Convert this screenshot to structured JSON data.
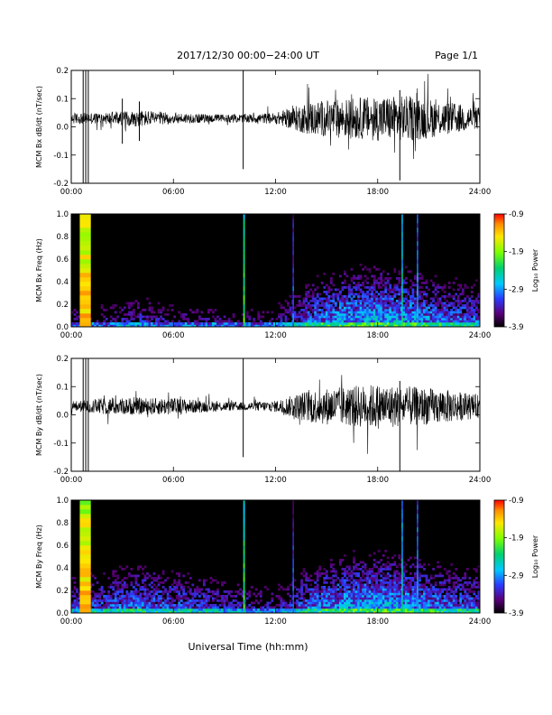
{
  "header": {
    "title": "2017/12/30   00:00−24:00 UT",
    "page": "Page 1/1"
  },
  "xaxis": {
    "label": "Universal Time (hh:mm)",
    "ticks": [
      "00:00",
      "06:00",
      "12:00",
      "18:00",
      "24:00"
    ],
    "range_hours": [
      0,
      24
    ]
  },
  "colorbar": {
    "label": "Log₁₀ Power",
    "tick_labels": [
      "-0.9",
      "-1.9",
      "-2.9",
      "-3.9"
    ],
    "range": [
      -3.9,
      -0.9
    ]
  },
  "chart_data": [
    {
      "type": "line",
      "ylabel": "MCM Bx dB/dt (nT/sec)",
      "ylim": [
        -0.2,
        0.2
      ],
      "yticks": [
        "0.2",
        "0.1",
        "0.0",
        "-0.1",
        "-0.2"
      ],
      "xlim": [
        0,
        24
      ],
      "baseline": 0.03,
      "noise_envelope": {
        "hours": [
          0,
          0.5,
          1.2,
          2,
          4,
          6,
          8,
          10,
          12,
          13,
          14,
          16,
          18,
          20,
          22,
          24
        ],
        "amplitude": [
          0.02,
          0.02,
          0.02,
          0.02,
          0.03,
          0.02,
          0.015,
          0.015,
          0.02,
          0.04,
          0.06,
          0.07,
          0.08,
          0.08,
          0.06,
          0.04
        ]
      },
      "spikes": [
        {
          "hour": 0.7,
          "min": -0.2,
          "max": 0.2
        },
        {
          "hour": 0.85,
          "min": -0.2,
          "max": 0.2
        },
        {
          "hour": 1.0,
          "min": -0.2,
          "max": 0.2
        },
        {
          "hour": 3.0,
          "min": -0.06,
          "max": 0.1
        },
        {
          "hour": 4.0,
          "min": -0.05,
          "max": 0.09
        },
        {
          "hour": 10.1,
          "min": -0.15,
          "max": 0.2
        },
        {
          "hour": 19.3,
          "min": -0.19,
          "max": 0.13
        },
        {
          "hour": 20.3,
          "min": -0.04,
          "max": 0.12
        }
      ]
    },
    {
      "type": "heatmap",
      "ylabel": "MCM Bx Freq (Hz)",
      "ylim": [
        0,
        1
      ],
      "yticks": [
        "1.0",
        "0.8",
        "0.6",
        "0.4",
        "0.2",
        "0.0"
      ],
      "xlim": [
        0,
        24
      ],
      "zlim": [
        -3.9,
        -0.9
      ],
      "background": -3.9,
      "broadband_events": [
        {
          "start": 0.5,
          "end": 1.15,
          "power": -1.3
        },
        {
          "start": 10.1,
          "end": 10.2,
          "power": -2.1
        },
        {
          "start": 13.0,
          "end": 13.08,
          "power": -3.0
        },
        {
          "start": 19.4,
          "end": 19.48,
          "power": -2.4
        },
        {
          "start": 20.3,
          "end": 20.36,
          "power": -2.7
        }
      ],
      "activity": {
        "hours": [
          0,
          2,
          4,
          6,
          8,
          10,
          12,
          13,
          14,
          16,
          18,
          20,
          22,
          24
        ],
        "power": [
          -3.6,
          -3.6,
          -3.4,
          -3.6,
          -3.6,
          -3.7,
          -3.6,
          -3.3,
          -3.0,
          -2.8,
          -2.7,
          -2.8,
          -3.0,
          -3.1
        ]
      }
    },
    {
      "type": "line",
      "ylabel": "MCM By dB/dt (nT/sec)",
      "ylim": [
        -0.2,
        0.2
      ],
      "yticks": [
        "0.2",
        "0.1",
        "0.0",
        "-0.1",
        "-0.2"
      ],
      "xlim": [
        0,
        24
      ],
      "baseline": 0.03,
      "noise_envelope": {
        "hours": [
          0,
          0.5,
          1.2,
          2,
          4,
          6,
          8,
          10,
          12,
          13,
          14,
          16,
          18,
          20,
          22,
          24
        ],
        "amplitude": [
          0.02,
          0.02,
          0.025,
          0.03,
          0.03,
          0.03,
          0.02,
          0.015,
          0.02,
          0.04,
          0.06,
          0.07,
          0.08,
          0.07,
          0.06,
          0.04
        ]
      },
      "spikes": [
        {
          "hour": 0.7,
          "min": -0.2,
          "max": 0.2
        },
        {
          "hour": 0.85,
          "min": -0.2,
          "max": 0.2
        },
        {
          "hour": 1.0,
          "min": -0.2,
          "max": 0.2
        },
        {
          "hour": 10.1,
          "min": -0.15,
          "max": 0.2
        },
        {
          "hour": 19.3,
          "min": -0.2,
          "max": 0.12
        }
      ]
    },
    {
      "type": "heatmap",
      "ylabel": "MCM By Freq (Hz)",
      "ylim": [
        0,
        1
      ],
      "yticks": [
        "1.0",
        "0.8",
        "0.6",
        "0.4",
        "0.2",
        "0.0"
      ],
      "xlim": [
        0,
        24
      ],
      "zlim": [
        -3.9,
        -0.9
      ],
      "background": -3.9,
      "broadband_events": [
        {
          "start": 0.5,
          "end": 1.15,
          "power": -1.3
        },
        {
          "start": 10.1,
          "end": 10.2,
          "power": -2.1
        },
        {
          "start": 13.0,
          "end": 13.08,
          "power": -3.0
        },
        {
          "start": 19.4,
          "end": 19.48,
          "power": -2.4
        },
        {
          "start": 20.3,
          "end": 20.36,
          "power": -2.7
        }
      ],
      "activity": {
        "hours": [
          0,
          2,
          4,
          6,
          8,
          10,
          12,
          13,
          14,
          16,
          18,
          20,
          22,
          24
        ],
        "power": [
          -3.3,
          -3.1,
          -3.0,
          -3.1,
          -3.2,
          -3.4,
          -3.5,
          -3.3,
          -3.0,
          -2.8,
          -2.7,
          -2.8,
          -3.0,
          -3.1
        ]
      }
    }
  ]
}
